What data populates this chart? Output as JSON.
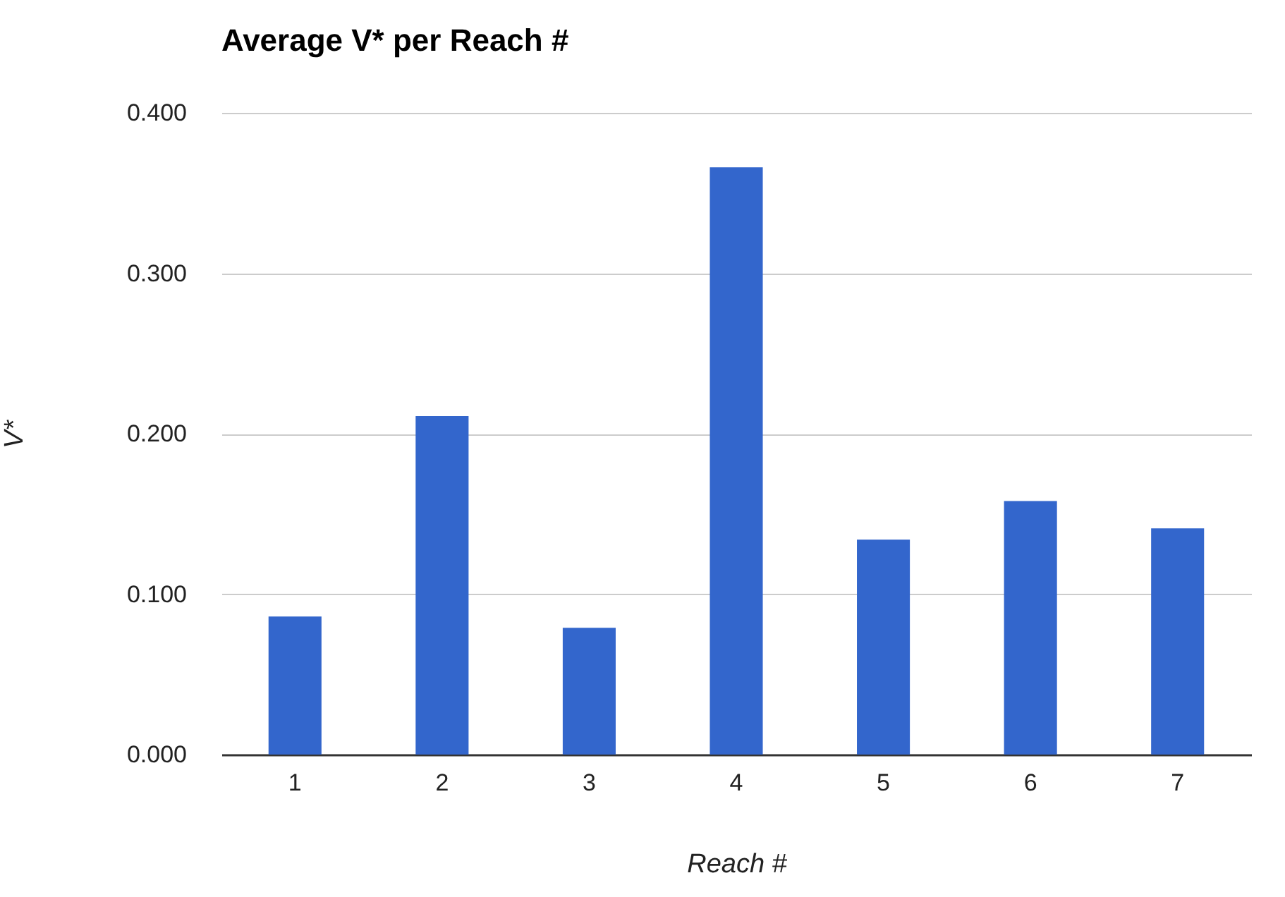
{
  "chart_data": {
    "type": "bar",
    "title": "Average V* per Reach #",
    "xlabel": "Reach #",
    "ylabel": "V*",
    "categories": [
      "1",
      "2",
      "3",
      "4",
      "5",
      "6",
      "7"
    ],
    "values": [
      0.086,
      0.211,
      0.079,
      0.366,
      0.134,
      0.158,
      0.141
    ],
    "color": "#3366cc",
    "ylim": [
      0,
      0.4
    ],
    "yticks": [
      {
        "value": 0,
        "label": "0.000"
      },
      {
        "value": 0.1,
        "label": "0.100"
      },
      {
        "value": 0.2,
        "label": "0.200"
      },
      {
        "value": 0.3,
        "label": "0.300"
      },
      {
        "value": 0.4,
        "label": "0.400"
      }
    ],
    "grid": "y"
  }
}
